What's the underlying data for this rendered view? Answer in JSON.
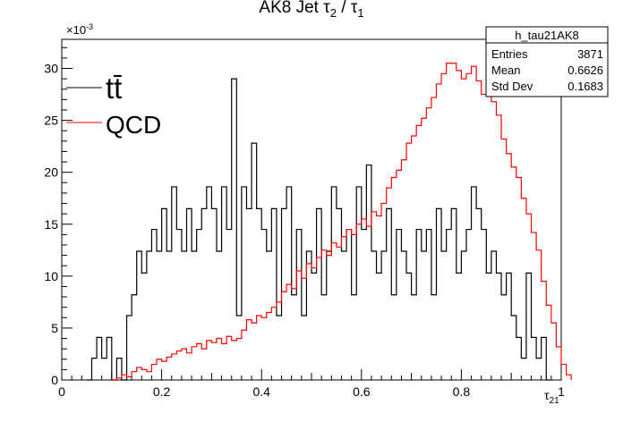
{
  "chart_data": {
    "type": "line",
    "title": "AK8 Jet τ",
    "title_sub_1": "2",
    "title_mid": " / τ",
    "title_sub_2": "1",
    "xlabel": "τ",
    "xlabel_sub": "21",
    "ylabel": "",
    "y_exponent_label": "×10",
    "y_exponent_power": "-3",
    "xlim": [
      0,
      1
    ],
    "ylim": [
      0,
      0.0328
    ],
    "x_ticks": [
      "0",
      "0.2",
      "0.4",
      "0.6",
      "0.8",
      "1"
    ],
    "y_ticks": [
      "0",
      "5",
      "10",
      "15",
      "20",
      "25",
      "30"
    ],
    "grid": false,
    "legend_position": "top-left",
    "stats_box": {
      "name": "h_tau21AK8",
      "rows": [
        {
          "label": "Entries",
          "value": "3871"
        },
        {
          "label": "Mean",
          "value": "0.6626"
        },
        {
          "label": "Std Dev",
          "value": "0.1683"
        }
      ]
    },
    "bin_width": 0.01,
    "series": [
      {
        "name": "tt̄",
        "color": "#000000",
        "x_start": 0.05,
        "values": [
          0.0,
          0.0021,
          0.0041,
          0.0021,
          0.0041,
          0.0,
          0.0021,
          0.0,
          0.0062,
          0.0082,
          0.0124,
          0.0103,
          0.0124,
          0.0145,
          0.0124,
          0.0165,
          0.0124,
          0.0186,
          0.0145,
          0.0124,
          0.0165,
          0.0124,
          0.0145,
          0.0165,
          0.0186,
          0.0165,
          0.0124,
          0.0186,
          0.0145,
          0.029,
          0.0062,
          0.0186,
          0.0165,
          0.0228,
          0.0165,
          0.0145,
          0.0124,
          0.0165,
          0.0062,
          0.0165,
          0.0186,
          0.0082,
          0.0145,
          0.0062,
          0.0124,
          0.0103,
          0.0165,
          0.0082,
          0.0124,
          0.0186,
          0.0165,
          0.0124,
          0.0145,
          0.0082,
          0.0186,
          0.0145,
          0.0207,
          0.0124,
          0.0103,
          0.0124,
          0.0165,
          0.0082,
          0.0145,
          0.0124,
          0.0103,
          0.0082,
          0.0145,
          0.0124,
          0.0145,
          0.0082,
          0.0165,
          0.0124,
          0.0145,
          0.0165,
          0.0103,
          0.0124,
          0.0145,
          0.0186,
          0.0165,
          0.0145,
          0.0103,
          0.0124,
          0.0103,
          0.0082,
          0.0103,
          0.0062,
          0.0041,
          0.0021,
          0.0103,
          0.0041,
          0.0021,
          0.0041,
          0.0
        ]
      },
      {
        "name": "QCD",
        "color": "#ff0000",
        "x_start": 0.1,
        "values": [
          0.0,
          0.0002,
          0.0005,
          0.0003,
          0.0008,
          0.0012,
          0.001,
          0.0008,
          0.0015,
          0.002,
          0.0018,
          0.0022,
          0.0025,
          0.0028,
          0.003,
          0.0026,
          0.0032,
          0.0035,
          0.003,
          0.0038,
          0.0036,
          0.004,
          0.0035,
          0.0042,
          0.0038,
          0.004,
          0.0048,
          0.0058,
          0.0055,
          0.0062,
          0.006,
          0.0065,
          0.007,
          0.0075,
          0.0085,
          0.0092,
          0.0088,
          0.0105,
          0.0098,
          0.0112,
          0.0108,
          0.0118,
          0.0125,
          0.012,
          0.0132,
          0.0128,
          0.0138,
          0.0145,
          0.014,
          0.015,
          0.0155,
          0.0148,
          0.0162,
          0.0158,
          0.017,
          0.0185,
          0.0195,
          0.0202,
          0.0212,
          0.0228,
          0.0235,
          0.0245,
          0.0252,
          0.0262,
          0.0272,
          0.0285,
          0.0295,
          0.0305,
          0.0305,
          0.0298,
          0.029,
          0.0295,
          0.0302,
          0.0288,
          0.0275,
          0.0282,
          0.0268,
          0.0255,
          0.0232,
          0.0218,
          0.0205,
          0.0195,
          0.0175,
          0.016,
          0.0142,
          0.0125,
          0.0095,
          0.0072,
          0.0055,
          0.0032,
          0.0015,
          0.0005
        ]
      }
    ]
  }
}
